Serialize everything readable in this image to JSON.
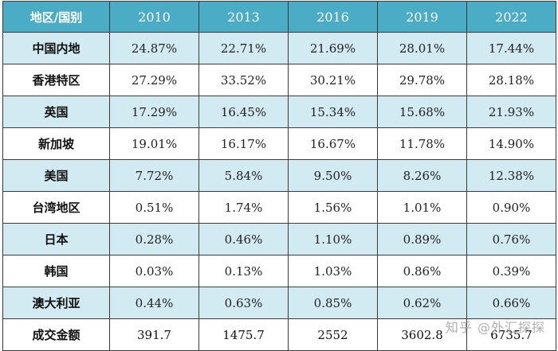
{
  "table": {
    "corner_header": "地区/国别",
    "years": [
      "2010",
      "2013",
      "2016",
      "2019",
      "2022"
    ],
    "rows": [
      {
        "region": "中国内地",
        "values": [
          "24.87%",
          "22.71%",
          "21.69%",
          "28.01%",
          "17.44%"
        ]
      },
      {
        "region": "香港特区",
        "values": [
          "27.29%",
          "33.52%",
          "30.21%",
          "29.78%",
          "28.18%"
        ]
      },
      {
        "region": "英国",
        "values": [
          "17.29%",
          "16.45%",
          "15.34%",
          "15.68%",
          "21.93%"
        ]
      },
      {
        "region": "新加坡",
        "values": [
          "19.01%",
          "16.17%",
          "16.67%",
          "11.78%",
          "14.90%"
        ]
      },
      {
        "region": "美国",
        "values": [
          "7.72%",
          "5.84%",
          "9.50%",
          "8.26%",
          "12.38%"
        ]
      },
      {
        "region": "台湾地区",
        "values": [
          "0.51%",
          "1.74%",
          "1.56%",
          "1.01%",
          "0.90%"
        ]
      },
      {
        "region": "日本",
        "values": [
          "0.28%",
          "0.46%",
          "1.10%",
          "0.89%",
          "0.76%"
        ]
      },
      {
        "region": "韩国",
        "values": [
          "0.03%",
          "0.13%",
          "1.03%",
          "0.86%",
          "0.39%"
        ]
      },
      {
        "region": "澳大利亚",
        "values": [
          "0.44%",
          "0.63%",
          "0.85%",
          "0.62%",
          "0.66%"
        ]
      }
    ],
    "total_row": {
      "region": "成交金额",
      "values": [
        "391.7",
        "1475.7",
        "2552",
        "3602.8",
        "6735.7"
      ]
    }
  },
  "watermark": "知乎 @外汇探探",
  "colors": {
    "header_bg": "#4bacc6",
    "shaded_row": "#d2eaf1",
    "border": "#3b3b3b"
  }
}
